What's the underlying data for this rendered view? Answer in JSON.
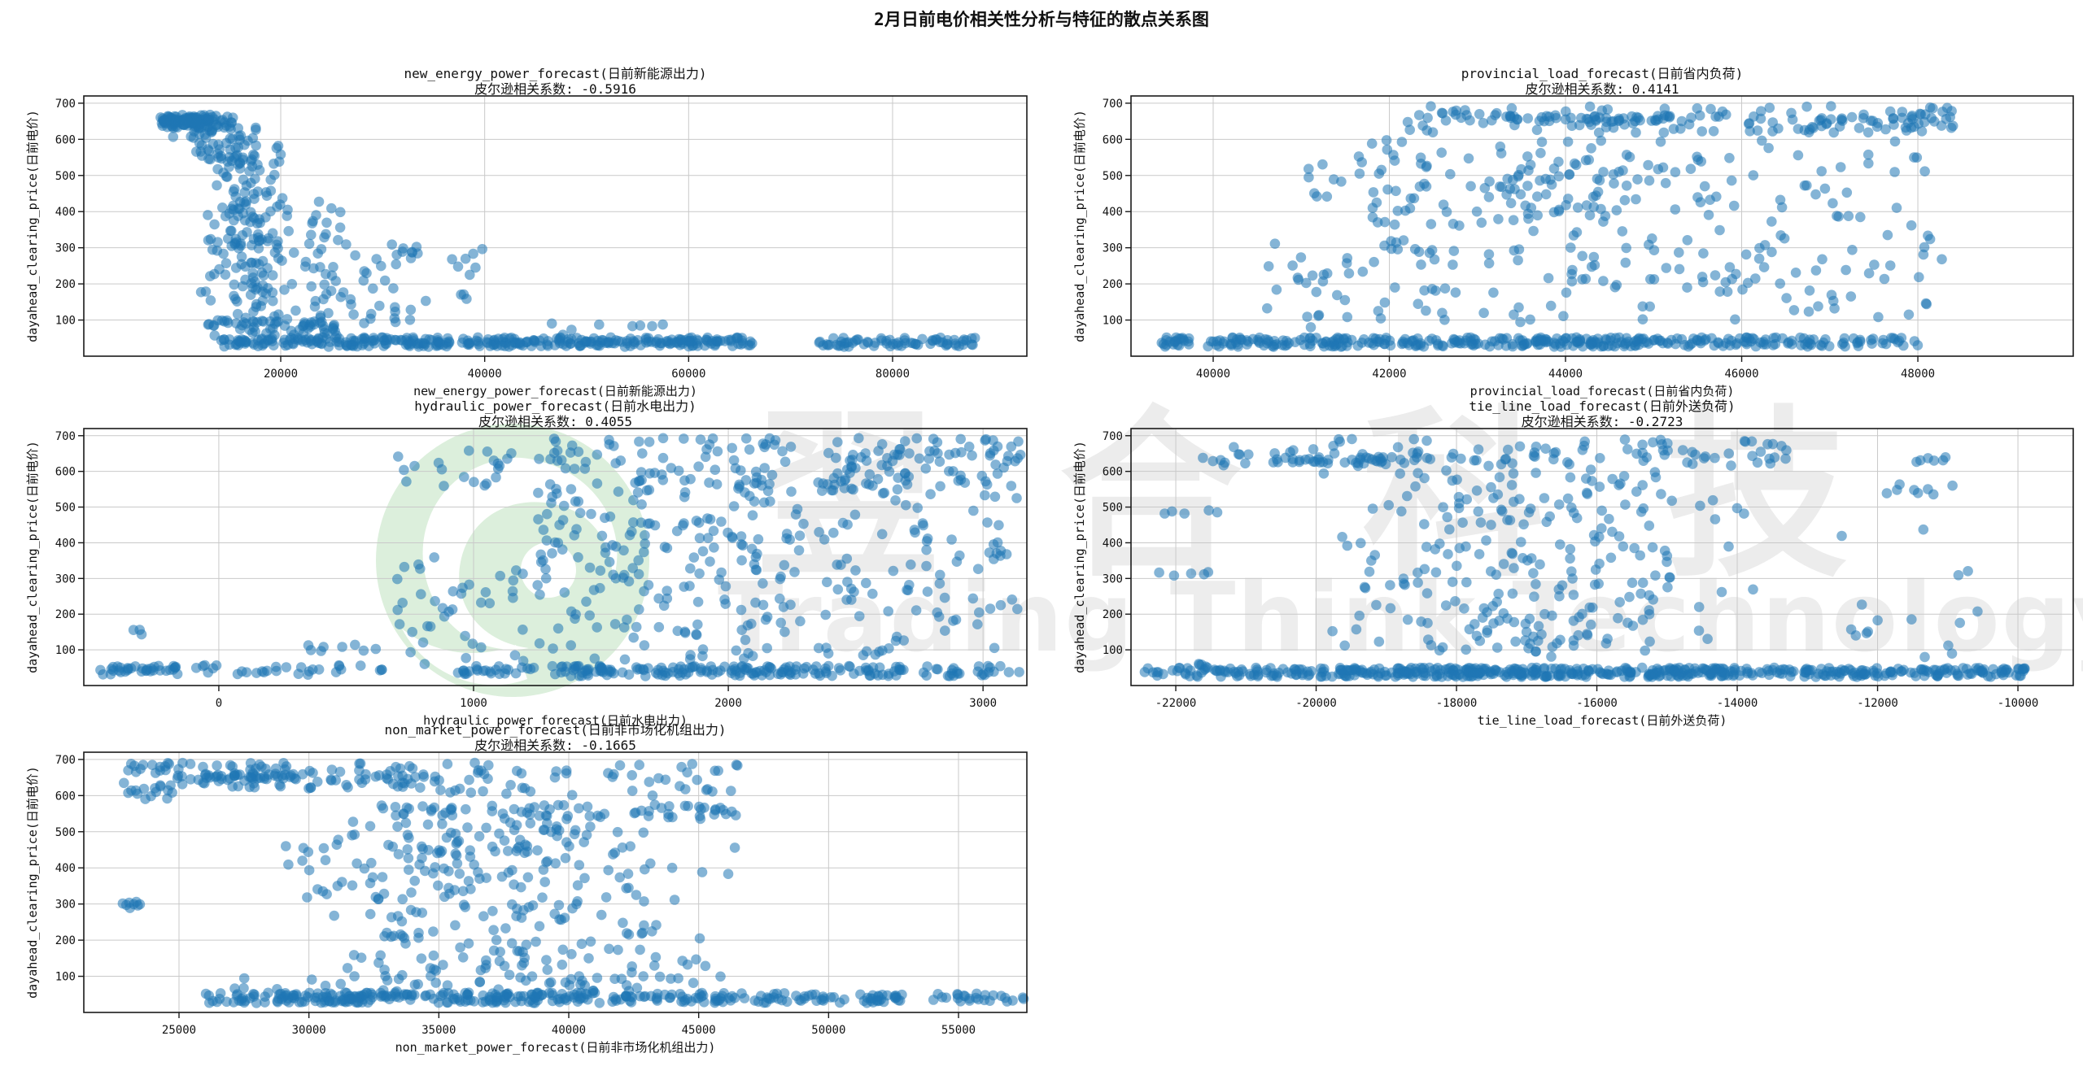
{
  "title": "2月日前电价相关性分析与特征的散点关系图",
  "watermark": {
    "cjk": "翌合科技",
    "latin": "Trading Think Technology",
    "logo": "green-phoenix-logo",
    "logo_color": "#dcefdc",
    "text_color": "#ececec"
  },
  "style": {
    "point_color": "#1f77b4",
    "point_opacity": 0.55,
    "point_radius": 6.3,
    "grid_color": "#c9c9c9",
    "spine_color": "#1a1a1a",
    "tick_color": "#1a1a1a"
  },
  "axes_y": {
    "label": "dayahead_clearing_price(日前电价)",
    "lim": [
      0,
      720
    ],
    "ticks": [
      100,
      200,
      300,
      400,
      500,
      600,
      700
    ]
  },
  "chart_data": [
    {
      "type": "scatter",
      "key": "new_energy_power_forecast",
      "title": "new_energy_power_forecast(日前新能源出力)",
      "pearson_label": "皮尔逊相关系数: -0.5916",
      "pearson": -0.5916,
      "xlabel": "new_energy_power_forecast(日前新能源出力)",
      "ylabel": "dayahead_clearing_price(日前电价)",
      "xlim": [
        689,
        93167
      ],
      "xticks": [
        {
          "v": 20000,
          "label": "20000"
        },
        {
          "v": 40000,
          "label": "40000"
        },
        {
          "v": 60000,
          "label": "60000"
        },
        {
          "v": 80000,
          "label": "80000"
        }
      ],
      "grid": true,
      "seed": 101,
      "clusters": [
        {
          "n": 70,
          "x": [
            8200,
            15500
          ],
          "y": [
            630,
            668
          ]
        },
        {
          "n": 50,
          "x": [
            8200,
            13500
          ],
          "y": [
            643,
            661
          ]
        },
        {
          "n": 25,
          "x": [
            9000,
            18000
          ],
          "y": [
            595,
            640
          ]
        },
        {
          "n": 30,
          "x": [
            11000,
            20000
          ],
          "y": [
            545,
            602
          ]
        },
        {
          "n": 160,
          "x": [
            10500,
            23000
          ],
          "y": [
            80,
            560
          ],
          "gx": true
        },
        {
          "n": 40,
          "x": [
            17000,
            26000
          ],
          "y": [
            150,
            430
          ]
        },
        {
          "n": 35,
          "x": [
            22000,
            33000
          ],
          "y": [
            90,
            310
          ]
        },
        {
          "n": 15,
          "x": [
            28000,
            42000
          ],
          "y": [
            120,
            300
          ]
        },
        {
          "n": 45,
          "x": [
            13000,
            26000
          ],
          "y": [
            55,
            100
          ]
        },
        {
          "n": 280,
          "x": [
            14000,
            58500
          ],
          "y": [
            26,
            52
          ]
        },
        {
          "n": 55,
          "x": [
            58500,
            66500
          ],
          "y": [
            26,
            52
          ]
        },
        {
          "n": 70,
          "x": [
            72500,
            88500
          ],
          "y": [
            26,
            52
          ]
        },
        {
          "n": 8,
          "x": [
            46000,
            58000
          ],
          "y": [
            58,
            95
          ]
        },
        {
          "n": 8,
          "x": [
            30500,
            33500
          ],
          "y": [
            270,
            310
          ]
        }
      ]
    },
    {
      "type": "scatter",
      "key": "provincial_load_forecast",
      "title": "provincial_load_forecast(日前省内负荷)",
      "pearson_label": "皮尔逊相关系数: 0.4141",
      "pearson": 0.4141,
      "xlabel": "provincial_load_forecast(日前省内负荷)",
      "ylabel": "dayahead_clearing_price(日前电价)",
      "xlim": [
        39067,
        49764
      ],
      "xticks": [
        {
          "v": 40000,
          "label": "40000"
        },
        {
          "v": 42000,
          "label": "42000"
        },
        {
          "v": 44000,
          "label": "44000"
        },
        {
          "v": 46000,
          "label": "46000"
        },
        {
          "v": 48000,
          "label": "48000"
        }
      ],
      "grid": true,
      "seed": 202,
      "clusters": [
        {
          "n": 320,
          "x": [
            39400,
            46400
          ],
          "y": [
            26,
            52
          ]
        },
        {
          "n": 45,
          "x": [
            46400,
            48100
          ],
          "y": [
            26,
            52
          ]
        },
        {
          "n": 110,
          "x": [
            42000,
            48400
          ],
          "y": [
            618,
            692
          ]
        },
        {
          "n": 40,
          "x": [
            43000,
            45800
          ],
          "y": [
            648,
            668
          ]
        },
        {
          "n": 30,
          "x": [
            46800,
            48400
          ],
          "y": [
            630,
            662
          ]
        },
        {
          "n": 60,
          "x": [
            41800,
            42800
          ],
          "y": [
            100,
            600
          ]
        },
        {
          "n": 150,
          "x": [
            43000,
            48300
          ],
          "y": [
            90,
            600
          ]
        },
        {
          "n": 60,
          "x": [
            42800,
            46000
          ],
          "y": [
            380,
            560
          ]
        },
        {
          "n": 25,
          "x": [
            40600,
            41800
          ],
          "y": [
            80,
            320
          ]
        },
        {
          "n": 20,
          "x": [
            44000,
            46500
          ],
          "y": [
            180,
            300
          ]
        },
        {
          "n": 15,
          "x": [
            41000,
            42100
          ],
          "y": [
            440,
            560
          ]
        }
      ]
    },
    {
      "type": "scatter",
      "key": "hydraulic_power_forecast",
      "title": "hydraulic_power_forecast(日前水电出力)",
      "pearson_label": "皮尔逊相关系数: 0.4055",
      "pearson": 0.4055,
      "xlabel": "hydraulic_power_forecast(日前水电出力)",
      "ylabel": "dayahead_clearing_price(日前电价)",
      "xlim": [
        -530,
        3172
      ],
      "xticks": [
        {
          "v": 0,
          "label": "0"
        },
        {
          "v": 1000,
          "label": "1000"
        },
        {
          "v": 2000,
          "label": "2000"
        },
        {
          "v": 3000,
          "label": "3000"
        }
      ],
      "grid": true,
      "seed": 303,
      "clusters": [
        {
          "n": 35,
          "x": [
            -470,
            -150
          ],
          "y": [
            30,
            55
          ]
        },
        {
          "n": 30,
          "x": [
            -100,
            650
          ],
          "y": [
            30,
            58
          ]
        },
        {
          "n": 3,
          "x": [
            -380,
            -280
          ],
          "y": [
            140,
            160
          ]
        },
        {
          "n": 20,
          "x": [
            700,
            1150
          ],
          "y": [
            540,
            660
          ]
        },
        {
          "n": 40,
          "x": [
            700,
            1200
          ],
          "y": [
            60,
            360
          ]
        },
        {
          "n": 25,
          "x": [
            900,
            1250
          ],
          "y": [
            30,
            55
          ]
        },
        {
          "n": 90,
          "x": [
            1250,
            2250
          ],
          "y": [
            540,
            695
          ]
        },
        {
          "n": 160,
          "x": [
            1250,
            2300
          ],
          "y": [
            70,
            540
          ]
        },
        {
          "n": 130,
          "x": [
            1300,
            2350
          ],
          "y": [
            26,
            55
          ]
        },
        {
          "n": 100,
          "x": [
            2350,
            3150
          ],
          "y": [
            545,
            695
          ]
        },
        {
          "n": 90,
          "x": [
            2350,
            3150
          ],
          "y": [
            80,
            540
          ]
        },
        {
          "n": 60,
          "x": [
            2350,
            3150
          ],
          "y": [
            26,
            55
          ]
        },
        {
          "n": 20,
          "x": [
            1500,
            2100
          ],
          "y": [
            380,
            480
          ]
        },
        {
          "n": 8,
          "x": [
            300,
            620
          ],
          "y": [
            95,
            115
          ]
        }
      ]
    },
    {
      "type": "scatter",
      "key": "tie_line_load_forecast",
      "title": "tie_line_load_forecast(日前外送负荷)",
      "pearson_label": "皮尔逊相关系数: -0.2723",
      "pearson": -0.2723,
      "xlabel": "tie_line_load_forecast(日前外送负荷)",
      "ylabel": "dayahead_clearing_price(日前电价)",
      "xlim": [
        -22638,
        -9212
      ],
      "xticks": [
        {
          "v": -22000,
          "label": "-22000"
        },
        {
          "v": -20000,
          "label": "-20000"
        },
        {
          "v": -18000,
          "label": "-18000"
        },
        {
          "v": -16000,
          "label": "-16000"
        },
        {
          "v": -14000,
          "label": "-14000"
        },
        {
          "v": -12000,
          "label": "-12000"
        },
        {
          "v": -10000,
          "label": "-10000"
        }
      ],
      "grid": true,
      "seed": 404,
      "clusters": [
        {
          "n": 420,
          "x": [
            -22450,
            -9900
          ],
          "y": [
            24,
            50
          ]
        },
        {
          "n": 120,
          "x": [
            -19800,
            -13800
          ],
          "y": [
            24,
            50
          ]
        },
        {
          "n": 100,
          "x": [
            -21800,
            -13300
          ],
          "y": [
            615,
            692
          ]
        },
        {
          "n": 35,
          "x": [
            -20600,
            -18300
          ],
          "y": [
            622,
            642
          ]
        },
        {
          "n": 240,
          "x": [
            -21200,
            -13000
          ],
          "y": [
            80,
            605
          ],
          "gx": true
        },
        {
          "n": 5,
          "x": [
            -22300,
            -21300
          ],
          "y": [
            305,
            320
          ]
        },
        {
          "n": 5,
          "x": [
            -22300,
            -21400
          ],
          "y": [
            480,
            492
          ]
        },
        {
          "n": 4,
          "x": [
            -21900,
            -21100
          ],
          "y": [
            52,
            62
          ]
        },
        {
          "n": 8,
          "x": [
            -11900,
            -10900
          ],
          "y": [
            535,
            565
          ]
        },
        {
          "n": 4,
          "x": [
            -12400,
            -12100
          ],
          "y": [
            140,
            160
          ]
        },
        {
          "n": 6,
          "x": [
            -11600,
            -11000
          ],
          "y": [
            620,
            640
          ]
        },
        {
          "n": 12,
          "x": [
            -13000,
            -10500
          ],
          "y": [
            80,
            520
          ]
        }
      ]
    },
    {
      "type": "scatter",
      "key": "non_market_power_forecast",
      "title": "non_market_power_forecast(日前非市场化机组出力)",
      "pearson_label": "皮尔逊相关系数: -0.1665",
      "pearson": -0.1665,
      "xlabel": "non_market_power_forecast(日前非市场化机组出力)",
      "ylabel": "dayahead_clearing_price(日前电价)",
      "xlim": [
        21336,
        57630
      ],
      "xticks": [
        {
          "v": 25000,
          "label": "25000"
        },
        {
          "v": 30000,
          "label": "30000"
        },
        {
          "v": 35000,
          "label": "35000"
        },
        {
          "v": 40000,
          "label": "40000"
        },
        {
          "v": 45000,
          "label": "45000"
        },
        {
          "v": 50000,
          "label": "50000"
        },
        {
          "v": 55000,
          "label": "55000"
        }
      ],
      "grid": true,
      "seed": 505,
      "clusters": [
        {
          "n": 110,
          "x": [
            22800,
            34500
          ],
          "y": [
            618,
            692
          ]
        },
        {
          "n": 30,
          "x": [
            25500,
            29500
          ],
          "y": [
            645,
            662
          ]
        },
        {
          "n": 55,
          "x": [
            34500,
            47000
          ],
          "y": [
            600,
            692
          ]
        },
        {
          "n": 70,
          "x": [
            32500,
            46500
          ],
          "y": [
            535,
            575
          ]
        },
        {
          "n": 230,
          "x": [
            27500,
            47500
          ],
          "y": [
            80,
            530
          ],
          "gx": true
        },
        {
          "n": 40,
          "x": [
            29000,
            36000
          ],
          "y": [
            300,
            530
          ]
        },
        {
          "n": 300,
          "x": [
            26000,
            49500
          ],
          "y": [
            26,
            55
          ]
        },
        {
          "n": 35,
          "x": [
            49500,
            53000
          ],
          "y": [
            26,
            50
          ]
        },
        {
          "n": 25,
          "x": [
            53500,
            57600
          ],
          "y": [
            30,
            52
          ]
        },
        {
          "n": 40,
          "x": [
            27000,
            45000
          ],
          "y": [
            58,
            105
          ]
        },
        {
          "n": 8,
          "x": [
            22600,
            23800
          ],
          "y": [
            285,
            310
          ]
        },
        {
          "n": 10,
          "x": [
            23000,
            25000
          ],
          "y": [
            590,
            620
          ]
        }
      ]
    }
  ]
}
